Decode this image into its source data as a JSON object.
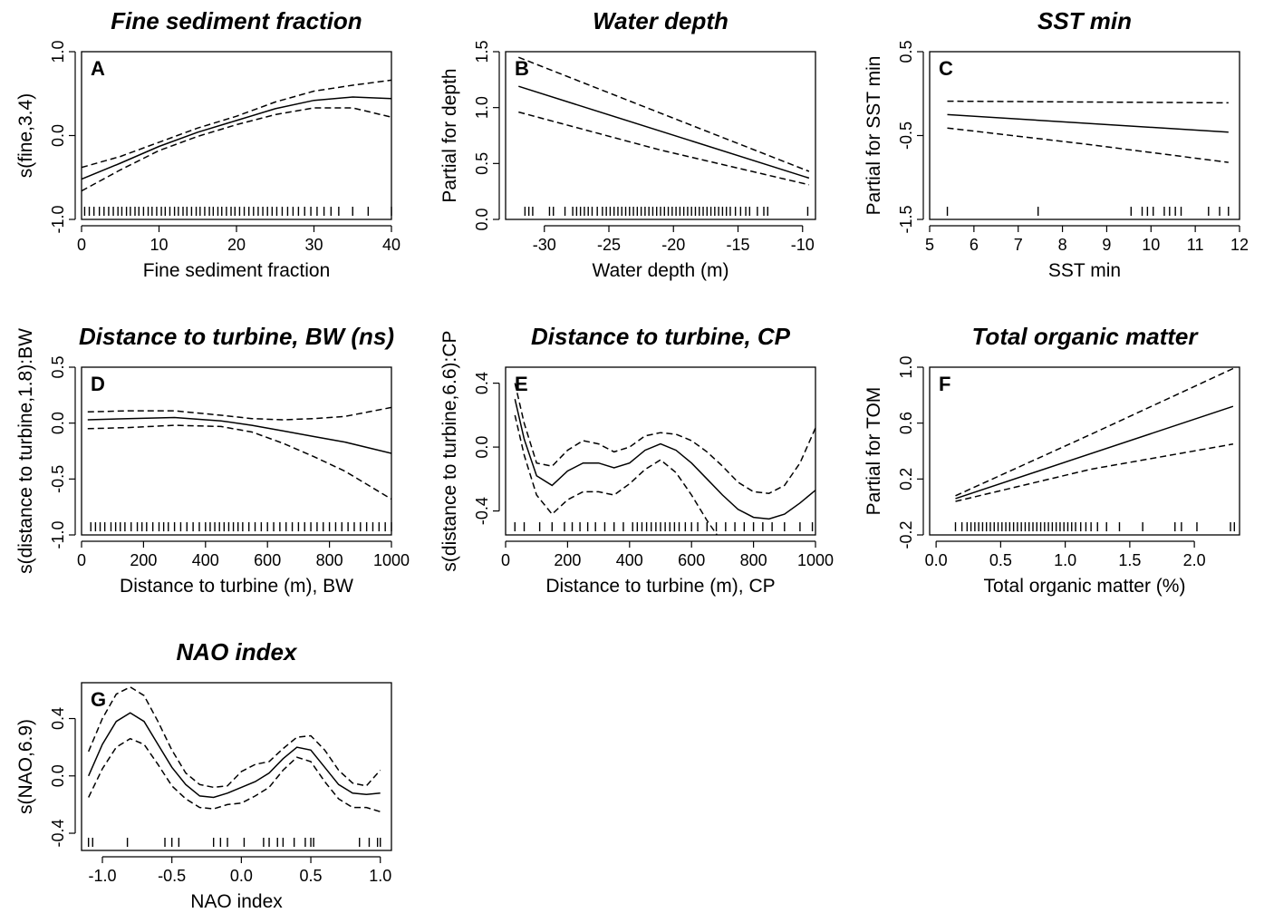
{
  "chart_data": [
    {
      "type": "line",
      "letter": "A",
      "title": "Fine sediment fraction",
      "xlabel": "Fine sediment fraction",
      "ylabel": "s(fine,3.4)",
      "xlim": [
        0,
        40
      ],
      "ylim": [
        -1.0,
        1.0
      ],
      "xticks": [
        0,
        10,
        20,
        30,
        40
      ],
      "yticks": [
        -1.0,
        0.0,
        1.0
      ],
      "yticklabels": [
        "-1.0",
        "0.0",
        "1.0"
      ],
      "series": [
        {
          "style": "solid",
          "x": [
            0,
            5,
            10,
            15,
            20,
            25,
            30,
            35,
            40
          ],
          "y": [
            -0.52,
            -0.33,
            -0.13,
            0.04,
            0.18,
            0.32,
            0.42,
            0.46,
            0.44
          ]
        },
        {
          "style": "dashed",
          "x": [
            0,
            5,
            10,
            15,
            20,
            25,
            30,
            35,
            40
          ],
          "y": [
            -0.38,
            -0.25,
            -0.08,
            0.09,
            0.23,
            0.4,
            0.53,
            0.6,
            0.66
          ]
        },
        {
          "style": "dashed",
          "x": [
            0,
            5,
            10,
            15,
            20,
            25,
            30,
            35,
            40
          ],
          "y": [
            -0.66,
            -0.41,
            -0.18,
            -0.01,
            0.13,
            0.25,
            0.33,
            0.33,
            0.22
          ]
        }
      ],
      "rug": [
        0.4,
        1,
        1.6,
        2.3,
        2.9,
        3.5,
        4.1,
        4.7,
        5.2,
        5.8,
        6.3,
        6.9,
        7.4,
        8,
        8.6,
        9.1,
        9.7,
        10.3,
        10.8,
        11.4,
        12,
        12.5,
        13.1,
        13.6,
        14.2,
        14.8,
        15.3,
        15.9,
        16.5,
        17,
        17.6,
        18.1,
        18.7,
        19.3,
        19.8,
        20.4,
        21,
        21.6,
        22.2,
        22.8,
        23.4,
        24,
        24.6,
        25.2,
        25.9,
        26.6,
        27.3,
        28,
        28.8,
        29.6,
        30.4,
        31.3,
        32.2,
        33.2,
        35,
        37,
        40
      ]
    },
    {
      "type": "line",
      "letter": "B",
      "title": "Water depth",
      "xlabel": "Water depth (m)",
      "ylabel": "Partial for depth",
      "xlim": [
        -33,
        -9
      ],
      "ylim": [
        0.0,
        1.5
      ],
      "xticks": [
        -30,
        -25,
        -20,
        -15,
        -10
      ],
      "yticks": [
        0.0,
        0.5,
        1.0,
        1.5
      ],
      "yticklabels": [
        "0.0",
        "0.5",
        "1.0",
        "1.5"
      ],
      "series": [
        {
          "style": "solid",
          "x": [
            -32,
            -9.5
          ],
          "y": [
            1.19,
            0.37
          ]
        },
        {
          "style": "dashed",
          "x": [
            -32,
            -21,
            -9.5
          ],
          "y": [
            1.45,
            0.95,
            0.43
          ]
        },
        {
          "style": "dashed",
          "x": [
            -32,
            -21,
            -9.5
          ],
          "y": [
            0.96,
            0.62,
            0.31
          ]
        }
      ],
      "rug": [
        -31.5,
        -31.2,
        -30.9,
        -29.6,
        -29.3,
        -28.4,
        -27.8,
        -27.5,
        -27.2,
        -26.9,
        -26.6,
        -26.3,
        -25.9,
        -25.5,
        -25.2,
        -24.9,
        -24.6,
        -24.3,
        -24,
        -23.7,
        -23.4,
        -23.1,
        -22.8,
        -22.5,
        -22.2,
        -21.9,
        -21.6,
        -21.3,
        -21,
        -20.7,
        -20.4,
        -20.1,
        -19.8,
        -19.5,
        -19.2,
        -18.9,
        -18.6,
        -18.3,
        -18,
        -17.7,
        -17.4,
        -17.1,
        -16.8,
        -16.5,
        -16.2,
        -15.9,
        -15.6,
        -15.2,
        -14.8,
        -14.4,
        -14.1,
        -13.5,
        -13,
        -12.7,
        -9.6
      ]
    },
    {
      "type": "line",
      "letter": "C",
      "title": "SST min",
      "xlabel": "SST min",
      "ylabel": "Partial for SST min",
      "xlim": [
        5,
        12
      ],
      "ylim": [
        -1.5,
        0.5
      ],
      "xticks": [
        5,
        6,
        7,
        8,
        9,
        10,
        11,
        12
      ],
      "yticks": [
        -1.5,
        -0.5,
        0.5
      ],
      "yticklabels": [
        "-1.5",
        "-0.5",
        "0.5"
      ],
      "series": [
        {
          "style": "solid",
          "x": [
            5.4,
            11.75
          ],
          "y": [
            -0.25,
            -0.46
          ]
        },
        {
          "style": "dashed",
          "x": [
            5.4,
            8.5,
            11.75
          ],
          "y": [
            -0.09,
            -0.1,
            -0.11
          ]
        },
        {
          "style": "dashed",
          "x": [
            5.4,
            8.5,
            11.75
          ],
          "y": [
            -0.41,
            -0.6,
            -0.82
          ]
        }
      ],
      "rug": [
        5.4,
        7.45,
        9.55,
        9.8,
        9.92,
        10.05,
        10.3,
        10.42,
        10.55,
        10.68,
        11.3,
        11.55,
        11.75
      ]
    },
    {
      "type": "line",
      "letter": "D",
      "title": "Distance to turbine, BW (ns)",
      "xlabel": "Distance to turbine (m), BW",
      "ylabel": "s(distance to turbine,1.8):BW",
      "xlim": [
        0,
        1000
      ],
      "ylim": [
        -1.0,
        0.5
      ],
      "xticks": [
        0,
        200,
        400,
        600,
        800,
        1000
      ],
      "yticks": [
        -1.0,
        -0.5,
        0.0,
        0.5
      ],
      "yticklabels": [
        "-1.0",
        "-0.5",
        "0.0",
        "0.5"
      ],
      "series": [
        {
          "style": "solid",
          "x": [
            20,
            150,
            300,
            450,
            550,
            650,
            750,
            850,
            1000
          ],
          "y": [
            0.03,
            0.04,
            0.05,
            0.02,
            -0.02,
            -0.07,
            -0.12,
            -0.17,
            -0.27
          ]
        },
        {
          "style": "dashed",
          "x": [
            20,
            150,
            300,
            450,
            550,
            650,
            750,
            850,
            1000
          ],
          "y": [
            0.1,
            0.11,
            0.11,
            0.07,
            0.04,
            0.03,
            0.04,
            0.06,
            0.14
          ]
        },
        {
          "style": "dashed",
          "x": [
            20,
            150,
            300,
            450,
            550,
            650,
            750,
            850,
            1000
          ],
          "y": [
            -0.05,
            -0.04,
            -0.02,
            -0.03,
            -0.08,
            -0.18,
            -0.3,
            -0.43,
            -0.68
          ]
        }
      ],
      "rug": [
        30,
        45,
        60,
        75,
        95,
        110,
        125,
        140,
        160,
        180,
        195,
        210,
        230,
        250,
        265,
        280,
        300,
        320,
        340,
        360,
        380,
        400,
        415,
        430,
        445,
        460,
        475,
        490,
        505,
        520,
        540,
        560,
        580,
        600,
        620,
        640,
        660,
        680,
        700,
        720,
        740,
        760,
        780,
        800,
        820,
        840,
        860,
        880,
        900,
        920,
        940,
        960,
        980,
        1000
      ]
    },
    {
      "type": "line",
      "letter": "E",
      "title": "Distance to turbine, CP",
      "xlabel": "Distance to turbine (m), CP",
      "ylabel": "s(distance to turbine,6.6):CP",
      "xlim": [
        0,
        1000
      ],
      "ylim": [
        -0.55,
        0.5
      ],
      "xticks": [
        0,
        200,
        400,
        600,
        800,
        1000
      ],
      "yticks": [
        -0.4,
        0.0,
        0.4
      ],
      "yticklabels": [
        "-0.4",
        "0.0",
        "0.4"
      ],
      "series": [
        {
          "style": "solid",
          "x": [
            30,
            60,
            100,
            150,
            200,
            250,
            300,
            350,
            400,
            450,
            500,
            550,
            600,
            650,
            700,
            750,
            800,
            850,
            900,
            950,
            1000
          ],
          "y": [
            0.3,
            0.05,
            -0.18,
            -0.24,
            -0.15,
            -0.1,
            -0.1,
            -0.13,
            -0.1,
            -0.02,
            0.02,
            -0.02,
            -0.1,
            -0.2,
            -0.3,
            -0.39,
            -0.44,
            -0.45,
            -0.42,
            -0.35,
            -0.27
          ]
        },
        {
          "style": "dashed",
          "x": [
            30,
            60,
            100,
            150,
            200,
            250,
            300,
            350,
            400,
            450,
            500,
            550,
            600,
            650,
            700,
            750,
            800,
            850,
            900,
            950,
            1000
          ],
          "y": [
            0.4,
            0.15,
            -0.1,
            -0.12,
            -0.02,
            0.04,
            0.02,
            -0.03,
            0.0,
            0.07,
            0.09,
            0.08,
            0.04,
            -0.03,
            -0.12,
            -0.22,
            -0.28,
            -0.29,
            -0.24,
            -0.1,
            0.12
          ]
        },
        {
          "style": "dashed",
          "x": [
            30,
            60,
            100,
            150,
            200,
            250,
            300,
            350,
            400,
            450,
            500,
            550,
            600,
            650,
            700
          ],
          "y": [
            0.2,
            -0.05,
            -0.3,
            -0.42,
            -0.33,
            -0.28,
            -0.28,
            -0.3,
            -0.23,
            -0.14,
            -0.08,
            -0.16,
            -0.3,
            -0.46,
            -0.6
          ]
        }
      ],
      "rug": [
        30,
        60,
        110,
        150,
        190,
        215,
        240,
        265,
        290,
        320,
        350,
        380,
        410,
        425,
        440,
        455,
        470,
        485,
        500,
        515,
        530,
        545,
        560,
        580,
        600,
        620,
        650,
        680,
        710,
        740,
        770,
        800,
        830,
        860,
        900,
        950,
        990
      ]
    },
    {
      "type": "line",
      "letter": "F",
      "title": "Total organic matter",
      "xlabel": "Total organic matter (%)",
      "ylabel": "Partial for TOM",
      "xlim": [
        -0.05,
        2.35
      ],
      "ylim": [
        -0.2,
        1.0
      ],
      "xticks": [
        0.0,
        0.5,
        1.0,
        1.5,
        2.0
      ],
      "xticklabels": [
        "0.0",
        "0.5",
        "1.0",
        "1.5",
        "2.0"
      ],
      "yticks": [
        -0.2,
        0.2,
        0.6,
        1.0
      ],
      "yticklabels": [
        "-0.2",
        "0.2",
        "0.6",
        "1.0"
      ],
      "series": [
        {
          "style": "solid",
          "x": [
            0.15,
            2.3
          ],
          "y": [
            0.06,
            0.72
          ]
        },
        {
          "style": "dashed",
          "x": [
            0.15,
            1.2,
            2.3
          ],
          "y": [
            0.08,
            0.52,
            0.99
          ]
        },
        {
          "style": "dashed",
          "x": [
            0.15,
            1.2,
            2.3
          ],
          "y": [
            0.04,
            0.27,
            0.45
          ]
        }
      ],
      "rug": [
        0.15,
        0.2,
        0.24,
        0.27,
        0.3,
        0.33,
        0.36,
        0.39,
        0.42,
        0.45,
        0.48,
        0.51,
        0.54,
        0.57,
        0.6,
        0.63,
        0.66,
        0.69,
        0.72,
        0.75,
        0.78,
        0.81,
        0.84,
        0.87,
        0.9,
        0.93,
        0.96,
        0.99,
        1.02,
        1.05,
        1.08,
        1.12,
        1.16,
        1.2,
        1.25,
        1.32,
        1.42,
        1.6,
        1.85,
        1.9,
        2.02,
        2.28,
        2.31
      ]
    },
    {
      "type": "line",
      "letter": "G",
      "title": "NAO index",
      "xlabel": "NAO index",
      "ylabel": "s(NAO,6.9)",
      "xlim": [
        -1.15,
        1.08
      ],
      "ylim": [
        -0.52,
        0.65
      ],
      "xticks": [
        -1.0,
        -0.5,
        0.0,
        0.5,
        1.0
      ],
      "xticklabels": [
        "-1.0",
        "-0.5",
        "0.0",
        "0.5",
        "1.0"
      ],
      "yticks": [
        -0.4,
        0.0,
        0.4
      ],
      "yticklabels": [
        "-0.4",
        "0.0",
        "0.4"
      ],
      "series": [
        {
          "style": "solid",
          "x": [
            -1.1,
            -1.0,
            -0.9,
            -0.8,
            -0.7,
            -0.6,
            -0.5,
            -0.4,
            -0.3,
            -0.2,
            -0.1,
            0.0,
            0.1,
            0.2,
            0.3,
            0.4,
            0.5,
            0.6,
            0.7,
            0.8,
            0.9,
            1.0
          ],
          "y": [
            0.0,
            0.22,
            0.38,
            0.44,
            0.38,
            0.22,
            0.06,
            -0.06,
            -0.14,
            -0.15,
            -0.12,
            -0.08,
            -0.04,
            0.02,
            0.12,
            0.2,
            0.18,
            0.06,
            -0.06,
            -0.12,
            -0.13,
            -0.12
          ]
        },
        {
          "style": "dashed",
          "x": [
            -1.1,
            -1.0,
            -0.9,
            -0.8,
            -0.7,
            -0.6,
            -0.5,
            -0.4,
            -0.3,
            -0.2,
            -0.1,
            0.0,
            0.1,
            0.2,
            0.3,
            0.4,
            0.5,
            0.6,
            0.7,
            0.8,
            0.9,
            1.0
          ],
          "y": [
            0.17,
            0.4,
            0.57,
            0.62,
            0.56,
            0.38,
            0.18,
            0.02,
            -0.06,
            -0.08,
            -0.07,
            0.03,
            0.08,
            0.1,
            0.19,
            0.27,
            0.28,
            0.18,
            0.04,
            -0.05,
            -0.07,
            0.04
          ]
        },
        {
          "style": "dashed",
          "x": [
            -1.1,
            -1.0,
            -0.9,
            -0.8,
            -0.7,
            -0.6,
            -0.5,
            -0.4,
            -0.3,
            -0.2,
            -0.1,
            0.0,
            0.1,
            0.2,
            0.3,
            0.4,
            0.5,
            0.6,
            0.7,
            0.8,
            0.9,
            1.0
          ],
          "y": [
            -0.15,
            0.05,
            0.2,
            0.26,
            0.22,
            0.08,
            -0.07,
            -0.16,
            -0.22,
            -0.23,
            -0.2,
            -0.19,
            -0.14,
            -0.08,
            0.04,
            0.13,
            0.1,
            -0.04,
            -0.16,
            -0.22,
            -0.22,
            -0.25
          ]
        }
      ],
      "rug": [
        -1.1,
        -1.07,
        -0.82,
        -0.55,
        -0.5,
        -0.45,
        -0.2,
        -0.15,
        -0.1,
        0.02,
        0.16,
        0.2,
        0.26,
        0.3,
        0.38,
        0.46,
        0.5,
        0.52,
        0.85,
        0.92,
        0.98,
        1.0
      ]
    }
  ]
}
